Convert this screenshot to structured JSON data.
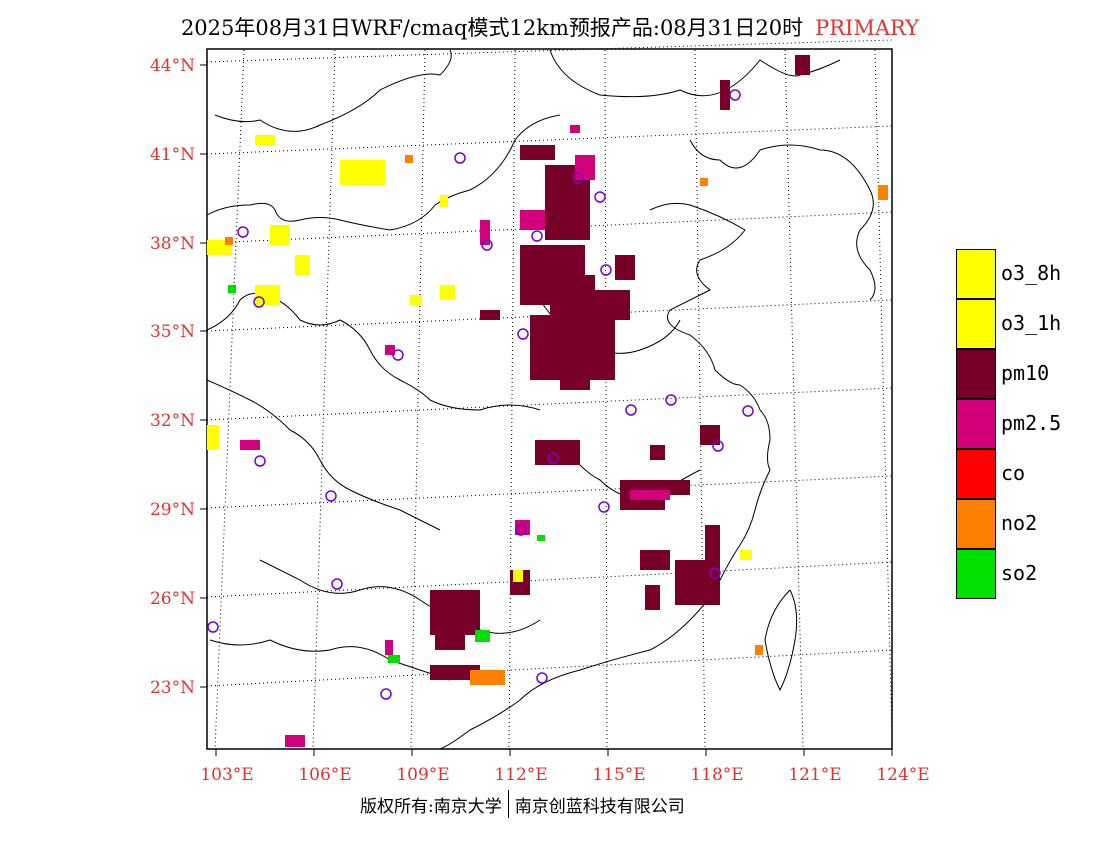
{
  "title": {
    "main": "2025年08月31日WRF/cmaq模式12km预报产品:08月31日20时",
    "tag": "PRIMARY"
  },
  "footer": {
    "left": "版权所有:南京大学",
    "right": "南京创蓝科技有限公司"
  },
  "axes": {
    "lat_labels": [
      "44°N",
      "41°N",
      "38°N",
      "35°N",
      "32°N",
      "29°N",
      "26°N",
      "23°N"
    ],
    "lon_labels": [
      "103°E",
      "106°E",
      "109°E",
      "112°E",
      "115°E",
      "118°E",
      "121°E",
      "124°E"
    ],
    "label_color": "#e83030"
  },
  "legend": [
    {
      "label": "o3_8h",
      "color": "#ffff00"
    },
    {
      "label": "o3_1h",
      "color": "#ffff00"
    },
    {
      "label": "pm10",
      "color": "#780028"
    },
    {
      "label": "pm2.5",
      "color": "#d2007a"
    },
    {
      "label": "co",
      "color": "#ff0000"
    },
    {
      "label": "no2",
      "color": "#ff8000"
    },
    {
      "label": "so2",
      "color": "#00e000"
    }
  ],
  "colors": {
    "pm10": "#780028",
    "pm25": "#d2007a",
    "o3": "#ffff00",
    "no2": "#ff8000",
    "so2": "#00e000",
    "station_circle": "#7a00cc"
  }
}
